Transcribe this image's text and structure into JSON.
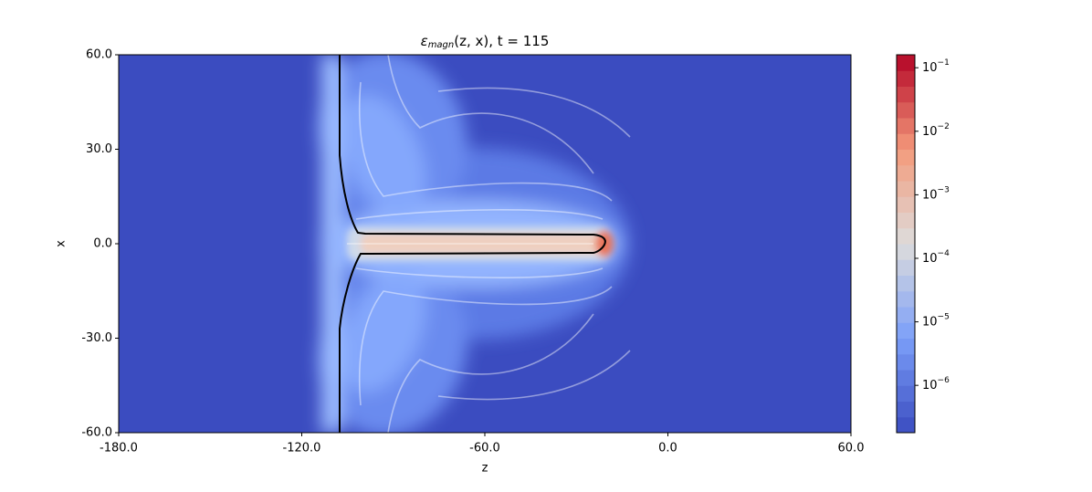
{
  "chart_data": {
    "type": "contourf",
    "title": {
      "symbol": "ε",
      "subscript": "magn",
      "rest": "(z, x), t = 115"
    },
    "x_label": "z",
    "y_label": "x",
    "xlim": [
      -180,
      60
    ],
    "ylim": [
      -60,
      60
    ],
    "xticks": [
      {
        "value": -180,
        "label": "-180.0"
      },
      {
        "value": -120,
        "label": "-120.0"
      },
      {
        "value": -60,
        "label": "-60.0"
      },
      {
        "value": 0,
        "label": "0.0"
      },
      {
        "value": 60,
        "label": "60.0"
      }
    ],
    "yticks": [
      {
        "value": 60,
        "label": "60.0"
      },
      {
        "value": 30,
        "label": "30.0"
      },
      {
        "value": 0,
        "label": "0.0"
      },
      {
        "value": -30,
        "label": "-30.0"
      },
      {
        "value": -60,
        "label": "-60.0"
      }
    ],
    "colormap": "coolwarm",
    "colorbar_log_scale": true,
    "clim": [
      1.8e-07,
      0.16
    ],
    "cticks": [
      {
        "value": 0.1,
        "label": "10",
        "exponent": "−1"
      },
      {
        "value": 0.01,
        "label": "10",
        "exponent": "−2"
      },
      {
        "value": 0.001,
        "label": "10",
        "exponent": "−3"
      },
      {
        "value": 0.0001,
        "label": "10",
        "exponent": "−4"
      },
      {
        "value": 1e-05,
        "label": "10",
        "exponent": "−5"
      },
      {
        "value": 1e-06,
        "label": "10",
        "exponent": "−6"
      }
    ]
  }
}
